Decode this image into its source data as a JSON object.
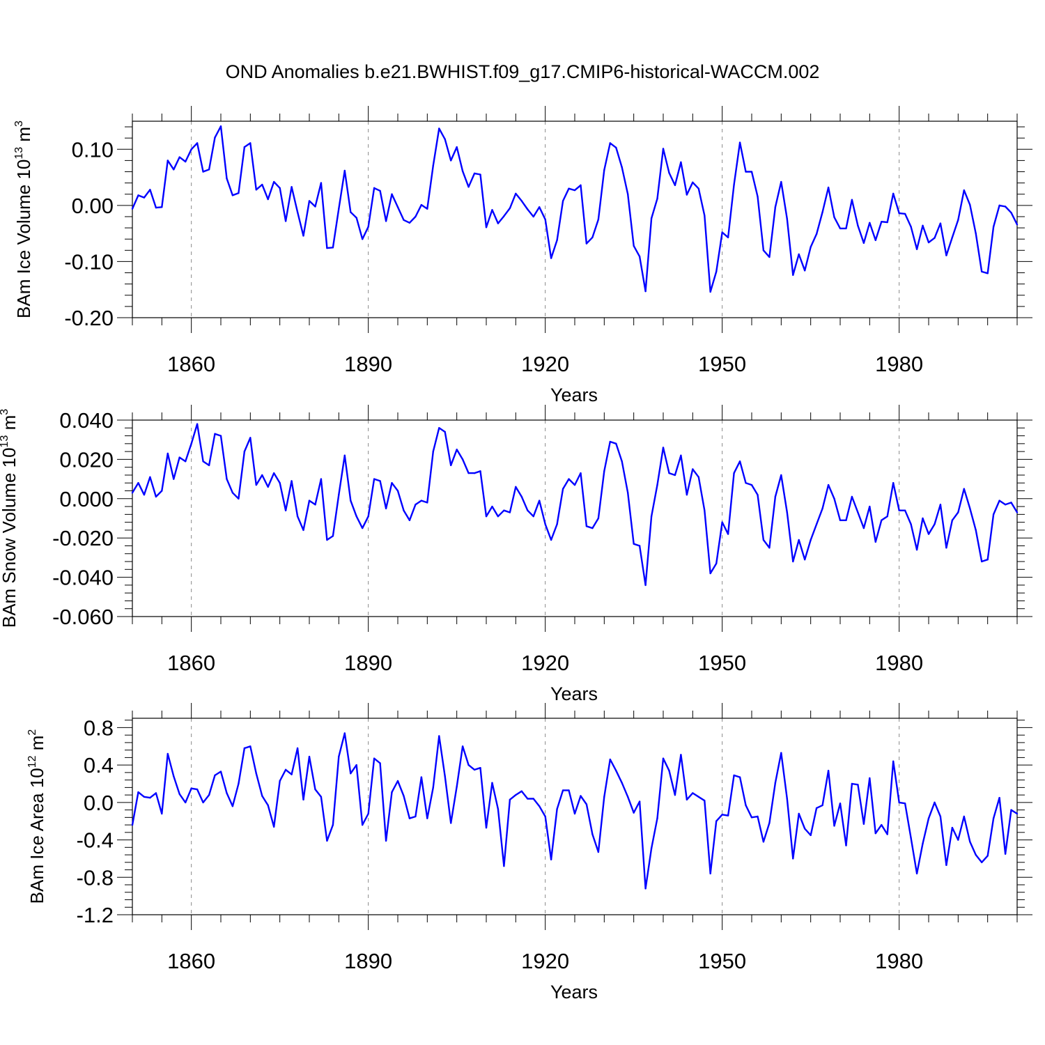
{
  "figure_title": "OND Anomalies b.e21.BWHIST.f09_g17.CMIP6-historical-WACCM.002",
  "colors": {
    "line": "#0000ff",
    "axis": "#000000",
    "grid": "#888888"
  },
  "chart_data": [
    {
      "type": "line",
      "title": "",
      "xlabel": "Years",
      "ylabel_main": "BAm Ice Volume 10",
      "ylabel_sup1": "13",
      "ylabel_unit": " m",
      "ylabel_sup2": "3",
      "xlim": [
        1850,
        2000
      ],
      "ylim": [
        -0.2,
        0.15
      ],
      "xticks": [
        1860,
        1890,
        1920,
        1950,
        1980
      ],
      "xtick_labels": [
        "1860",
        "1890",
        "1920",
        "1950",
        "1980"
      ],
      "yticks": [
        -0.2,
        -0.1,
        0.0,
        0.1
      ],
      "ytick_labels": [
        "-0.20",
        "-0.10",
        "0.00",
        "0.10"
      ],
      "x_start": 1850,
      "series": [
        {
          "name": "BAm Ice Volume",
          "values": [
            -0.006,
            0.018,
            0.014,
            0.028,
            -0.004,
            -0.003,
            0.08,
            0.064,
            0.086,
            0.078,
            0.1,
            0.111,
            0.06,
            0.064,
            0.121,
            0.141,
            0.048,
            0.018,
            0.022,
            0.104,
            0.111,
            0.028,
            0.037,
            0.011,
            0.042,
            0.031,
            -0.028,
            0.033,
            -0.012,
            -0.054,
            0.008,
            -0.002,
            0.04,
            -0.076,
            -0.075,
            -0.006,
            0.062,
            -0.012,
            -0.022,
            -0.06,
            -0.038,
            0.031,
            0.026,
            -0.028,
            0.02,
            -0.003,
            -0.026,
            -0.031,
            -0.02,
            0.001,
            -0.006,
            0.071,
            0.137,
            0.118,
            0.08,
            0.104,
            0.061,
            0.033,
            0.057,
            0.055,
            -0.039,
            -0.008,
            -0.032,
            -0.019,
            -0.005,
            0.021,
            0.008,
            -0.007,
            -0.02,
            -0.003,
            -0.025,
            -0.094,
            -0.062,
            0.008,
            0.03,
            0.027,
            0.036,
            -0.068,
            -0.057,
            -0.025,
            0.063,
            0.111,
            0.103,
            0.068,
            0.02,
            -0.072,
            -0.091,
            -0.153,
            -0.023,
            0.012,
            0.101,
            0.058,
            0.036,
            0.077,
            0.019,
            0.041,
            0.03,
            -0.018,
            -0.154,
            -0.118,
            -0.048,
            -0.057,
            0.037,
            0.112,
            0.06,
            0.06,
            0.016,
            -0.08,
            -0.092,
            -0.003,
            0.042,
            -0.024,
            -0.124,
            -0.087,
            -0.116,
            -0.074,
            -0.051,
            -0.012,
            0.032,
            -0.021,
            -0.041,
            -0.041,
            0.01,
            -0.036,
            -0.067,
            -0.031,
            -0.062,
            -0.029,
            -0.03,
            0.021,
            -0.014,
            -0.015,
            -0.038,
            -0.078,
            -0.036,
            -0.066,
            -0.058,
            -0.032,
            -0.089,
            -0.057,
            -0.026,
            0.027,
            0.001,
            -0.05,
            -0.118,
            -0.121,
            -0.038,
            0.0,
            -0.002,
            -0.013,
            -0.034
          ]
        }
      ]
    },
    {
      "type": "line",
      "title": "",
      "xlabel": "Years",
      "ylabel_main": "BAm Snow Volume 10",
      "ylabel_sup1": "13",
      "ylabel_unit": " m",
      "ylabel_sup2": "3",
      "xlim": [
        1850,
        2000
      ],
      "ylim": [
        -0.06,
        0.04
      ],
      "xticks": [
        1860,
        1890,
        1920,
        1950,
        1980
      ],
      "xtick_labels": [
        "1860",
        "1890",
        "1920",
        "1950",
        "1980"
      ],
      "yticks": [
        -0.06,
        -0.04,
        -0.02,
        0.0,
        0.02,
        0.04
      ],
      "ytick_labels": [
        "-0.060",
        "-0.040",
        "-0.020",
        "0.000",
        "0.020",
        "0.040"
      ],
      "x_start": 1850,
      "series": [
        {
          "name": "BAm Snow Volume",
          "values": [
            0.003,
            0.008,
            0.002,
            0.011,
            0.001,
            0.004,
            0.023,
            0.01,
            0.021,
            0.019,
            0.028,
            0.038,
            0.019,
            0.017,
            0.033,
            0.032,
            0.01,
            0.003,
            0.0,
            0.024,
            0.031,
            0.007,
            0.012,
            0.006,
            0.013,
            0.008,
            -0.006,
            0.009,
            -0.009,
            -0.016,
            -0.001,
            -0.003,
            0.01,
            -0.021,
            -0.019,
            0.002,
            0.022,
            -0.001,
            -0.009,
            -0.015,
            -0.009,
            0.01,
            0.009,
            -0.005,
            0.008,
            0.004,
            -0.006,
            -0.011,
            -0.003,
            -0.001,
            -0.002,
            0.024,
            0.036,
            0.034,
            0.017,
            0.025,
            0.02,
            0.013,
            0.013,
            0.014,
            -0.009,
            -0.004,
            -0.009,
            -0.006,
            -0.007,
            0.006,
            0.001,
            -0.006,
            -0.009,
            -0.001,
            -0.013,
            -0.021,
            -0.013,
            0.005,
            0.01,
            0.007,
            0.013,
            -0.014,
            -0.015,
            -0.01,
            0.014,
            0.029,
            0.028,
            0.019,
            0.003,
            -0.023,
            -0.024,
            -0.044,
            -0.009,
            0.007,
            0.026,
            0.013,
            0.012,
            0.022,
            0.002,
            0.015,
            0.011,
            -0.006,
            -0.038,
            -0.033,
            -0.012,
            -0.018,
            0.013,
            0.019,
            0.008,
            0.007,
            0.002,
            -0.021,
            -0.025,
            0.001,
            0.012,
            -0.007,
            -0.032,
            -0.021,
            -0.031,
            -0.021,
            -0.013,
            -0.005,
            0.007,
            0.0,
            -0.011,
            -0.011,
            0.001,
            -0.007,
            -0.015,
            -0.004,
            -0.022,
            -0.011,
            -0.009,
            0.008,
            -0.006,
            -0.006,
            -0.013,
            -0.026,
            -0.01,
            -0.018,
            -0.013,
            -0.003,
            -0.025,
            -0.011,
            -0.007,
            0.005,
            -0.005,
            -0.016,
            -0.032,
            -0.031,
            -0.008,
            -0.001,
            -0.003,
            -0.002,
            -0.007
          ]
        }
      ]
    },
    {
      "type": "line",
      "title": "",
      "xlabel": "Years",
      "ylabel_main": "BAm Ice Area 10",
      "ylabel_sup1": "12",
      "ylabel_unit": " m",
      "ylabel_sup2": "2",
      "xlim": [
        1850,
        2000
      ],
      "ylim": [
        -1.2,
        0.9
      ],
      "xticks": [
        1860,
        1890,
        1920,
        1950,
        1980
      ],
      "xtick_labels": [
        "1860",
        "1890",
        "1920",
        "1950",
        "1980"
      ],
      "yticks": [
        -1.2,
        -0.8,
        -0.4,
        0.0,
        0.4,
        0.8
      ],
      "ytick_labels": [
        "-1.2",
        "-0.8",
        "-0.4",
        "0.0",
        "0.4",
        "0.8"
      ],
      "x_start": 1850,
      "series": [
        {
          "name": "BAm Ice Area",
          "values": [
            -0.24,
            0.11,
            0.06,
            0.05,
            0.1,
            -0.12,
            0.52,
            0.28,
            0.09,
            0.0,
            0.15,
            0.14,
            0.0,
            0.08,
            0.29,
            0.33,
            0.1,
            -0.04,
            0.2,
            0.58,
            0.6,
            0.31,
            0.07,
            -0.03,
            -0.26,
            0.23,
            0.35,
            0.3,
            0.58,
            0.03,
            0.49,
            0.14,
            0.06,
            -0.41,
            -0.24,
            0.49,
            0.74,
            0.31,
            0.4,
            -0.24,
            -0.12,
            0.47,
            0.42,
            -0.41,
            0.11,
            0.23,
            0.07,
            -0.17,
            -0.15,
            0.27,
            -0.17,
            0.16,
            0.71,
            0.28,
            -0.22,
            0.17,
            0.6,
            0.4,
            0.35,
            0.37,
            -0.27,
            0.21,
            -0.07,
            -0.68,
            0.03,
            0.08,
            0.12,
            0.04,
            0.04,
            -0.04,
            -0.15,
            -0.61,
            -0.07,
            0.13,
            0.13,
            -0.12,
            0.07,
            -0.02,
            -0.34,
            -0.53,
            0.06,
            0.46,
            0.34,
            0.21,
            0.06,
            -0.11,
            0.01,
            -0.92,
            -0.49,
            -0.17,
            0.47,
            0.34,
            0.08,
            0.51,
            0.03,
            0.1,
            0.06,
            0.02,
            -0.76,
            -0.2,
            -0.13,
            -0.14,
            0.29,
            0.27,
            -0.03,
            -0.16,
            -0.15,
            -0.42,
            -0.22,
            0.21,
            0.53,
            0.04,
            -0.6,
            -0.12,
            -0.28,
            -0.35,
            -0.06,
            -0.03,
            0.34,
            -0.25,
            -0.01,
            -0.46,
            0.2,
            0.19,
            -0.23,
            0.26,
            -0.33,
            -0.24,
            -0.34,
            0.44,
            0.0,
            -0.01,
            -0.38,
            -0.76,
            -0.44,
            -0.17,
            0.0,
            -0.15,
            -0.67,
            -0.27,
            -0.4,
            -0.15,
            -0.42,
            -0.56,
            -0.64,
            -0.57,
            -0.17,
            0.05,
            -0.55,
            -0.08,
            -0.12
          ]
        }
      ]
    }
  ]
}
